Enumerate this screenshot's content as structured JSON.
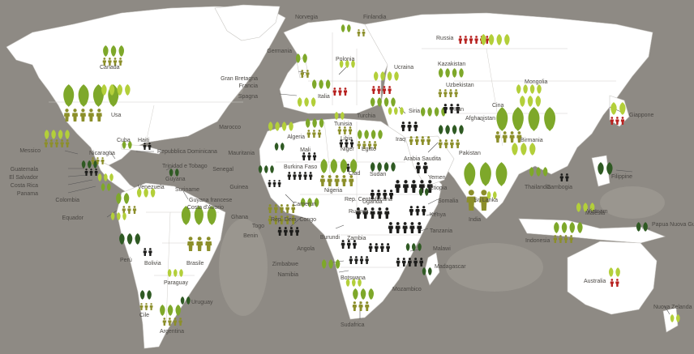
{
  "colors": {
    "ocean": "#8e8a84",
    "land": "#ffffff",
    "border": "#c9c7c3",
    "leaf_light": "#b3cf3a",
    "leaf_mid": "#7ea82a",
    "leaf_dark": "#2f5a23",
    "person_olive": "#8c8f2a",
    "person_dark": "#1d1d1b",
    "person_red": "#b7211f",
    "leader": "#555555"
  },
  "icons": [
    "leaf-icon",
    "person-icon"
  ],
  "countries": [
    {
      "key": "canada",
      "name": "Canada"
    },
    {
      "key": "usa",
      "name": "Usa"
    },
    {
      "key": "messico",
      "name": "Messico"
    },
    {
      "key": "guatemala",
      "name": "Guatemala"
    },
    {
      "key": "el_salvador",
      "name": "El Salvador"
    },
    {
      "key": "costa_rica",
      "name": "Costa Rica"
    },
    {
      "key": "panama",
      "name": "Panama"
    },
    {
      "key": "nicaragua",
      "name": "Nicaragua"
    },
    {
      "key": "cuba",
      "name": "Cuba"
    },
    {
      "key": "haiti",
      "name": "Haiti"
    },
    {
      "key": "rep_dominicana",
      "name": "Repubblica Dominicana"
    },
    {
      "key": "trinidad",
      "name": "Trinidad e Tobago"
    },
    {
      "key": "guyana",
      "name": "Guyana"
    },
    {
      "key": "suriname",
      "name": "Suriname"
    },
    {
      "key": "guyana_fr",
      "name": "Guyana francese"
    },
    {
      "key": "venezuela",
      "name": "Venezuela"
    },
    {
      "key": "colombia",
      "name": "Colombia"
    },
    {
      "key": "ecuador",
      "name": "Equador"
    },
    {
      "key": "peru",
      "name": "Perù"
    },
    {
      "key": "bolivia",
      "name": "Bolivia"
    },
    {
      "key": "brasile",
      "name": "Brasile"
    },
    {
      "key": "paraguay",
      "name": "Paraguay"
    },
    {
      "key": "uruguay",
      "name": "Uruguay"
    },
    {
      "key": "cile",
      "name": "Cile"
    },
    {
      "key": "argentina",
      "name": "Argentina"
    },
    {
      "key": "norvegia",
      "name": "Norvegia"
    },
    {
      "key": "finlandia",
      "name": "Finlandia"
    },
    {
      "key": "russia",
      "name": "Russia"
    },
    {
      "key": "germania",
      "name": "Germania"
    },
    {
      "key": "polonia",
      "name": "Polonia"
    },
    {
      "key": "gran_bretagna",
      "name": "Gran Bretagna"
    },
    {
      "key": "francia",
      "name": "Francia"
    },
    {
      "key": "spagna",
      "name": "Spagna"
    },
    {
      "key": "italia",
      "name": "Italia"
    },
    {
      "key": "ucraina",
      "name": "Ucraina"
    },
    {
      "key": "kazakistan",
      "name": "Kazakistan"
    },
    {
      "key": "uzbekistan",
      "name": "Uzbekistan"
    },
    {
      "key": "mongolia",
      "name": "Mongolia"
    },
    {
      "key": "cina",
      "name": "Cina"
    },
    {
      "key": "giappone",
      "name": "Giappone"
    },
    {
      "key": "turchia",
      "name": "Turchia"
    },
    {
      "key": "siria",
      "name": "Siria"
    },
    {
      "key": "iran",
      "name": "Iran"
    },
    {
      "key": "iraq",
      "name": "Iraq"
    },
    {
      "key": "afghanistan",
      "name": "Afghanistan"
    },
    {
      "key": "pakistan",
      "name": "Pakistan"
    },
    {
      "key": "india",
      "name": "India"
    },
    {
      "key": "sri_lanka",
      "name": "Sri Lanka"
    },
    {
      "key": "birmania",
      "name": "Birmania"
    },
    {
      "key": "thailandia",
      "name": "Thailandia"
    },
    {
      "key": "cambogia",
      "name": "Cambogia"
    },
    {
      "key": "vietnam",
      "name": "Vietnam"
    },
    {
      "key": "malesia",
      "name": "Malesia"
    },
    {
      "key": "filippine",
      "name": "Filippine"
    },
    {
      "key": "indonesia",
      "name": "Indonesia"
    },
    {
      "key": "papua",
      "name": "Papua Nuova Guinea"
    },
    {
      "key": "australia",
      "name": "Australia"
    },
    {
      "key": "nuova_zelanda",
      "name": "Nuova Zelanda"
    },
    {
      "key": "marocco",
      "name": "Marocco"
    },
    {
      "key": "algeria",
      "name": "Algeria"
    },
    {
      "key": "tunisia",
      "name": "Tunisia"
    },
    {
      "key": "libia",
      "name": "Libia"
    },
    {
      "key": "egitto",
      "name": "Egitto"
    },
    {
      "key": "arabia_saudita",
      "name": "Arabia Saudita"
    },
    {
      "key": "yemen",
      "name": "Yemen"
    },
    {
      "key": "mauritania",
      "name": "Mauritania"
    },
    {
      "key": "mali",
      "name": "Mali"
    },
    {
      "key": "niger",
      "name": "Niger"
    },
    {
      "key": "ciad",
      "name": "Ciad"
    },
    {
      "key": "sudan",
      "name": "Sudan"
    },
    {
      "key": "etiopia",
      "name": "Etiopia"
    },
    {
      "key": "somalia",
      "name": "Somalia"
    },
    {
      "key": "senegal",
      "name": "Senegal"
    },
    {
      "key": "guinea",
      "name": "Guinea"
    },
    {
      "key": "burkina_faso",
      "name": "Burkina Faso"
    },
    {
      "key": "nigeria",
      "name": "Nigeria"
    },
    {
      "key": "costa_avorio",
      "name": "Costa d'Avorio"
    },
    {
      "key": "ghana",
      "name": "Ghana"
    },
    {
      "key": "togo",
      "name": "Togo"
    },
    {
      "key": "benin",
      "name": "Benin"
    },
    {
      "key": "camerun",
      "name": "Camerun"
    },
    {
      "key": "rep_centrafricana",
      "name": "Rep. Centrafricana"
    },
    {
      "key": "uganda",
      "name": "Uganda"
    },
    {
      "key": "kenya",
      "name": "Kenya"
    },
    {
      "key": "rep_dem_congo",
      "name": "Rep. Dem. Congo"
    },
    {
      "key": "ruanda",
      "name": "Ruanda"
    },
    {
      "key": "burundi",
      "name": "Burundi"
    },
    {
      "key": "tanzania",
      "name": "Tanzania"
    },
    {
      "key": "angola",
      "name": "Angola"
    },
    {
      "key": "zambia",
      "name": "Zambia"
    },
    {
      "key": "malawi",
      "name": "Malawi"
    },
    {
      "key": "zimbabwe",
      "name": "Zimbabwe"
    },
    {
      "key": "mozambico",
      "name": "Mozambico"
    },
    {
      "key": "namibia",
      "name": "Namibia"
    },
    {
      "key": "botswana",
      "name": "Botswana"
    },
    {
      "key": "madagascar",
      "name": "Madagascar"
    },
    {
      "key": "sudafrica",
      "name": "Sudafrica"
    }
  ]
}
